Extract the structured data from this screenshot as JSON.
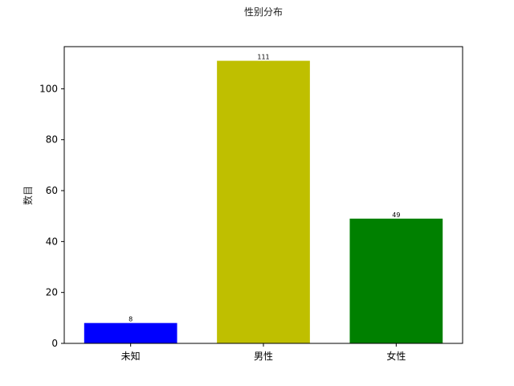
{
  "chart_data": {
    "type": "bar",
    "title": "性别分布",
    "xlabel": "",
    "ylabel": "数目",
    "categories": [
      "未知",
      "男性",
      "女性"
    ],
    "values": [
      8,
      111,
      49
    ],
    "colors": [
      "#0000ff",
      "#bfbf00",
      "#008000"
    ],
    "data_labels": [
      "8",
      "111",
      "49"
    ],
    "ylim": [
      0,
      116.55
    ],
    "yticks": [
      0,
      20,
      40,
      60,
      80,
      100
    ],
    "grid": false,
    "legend": "none"
  }
}
